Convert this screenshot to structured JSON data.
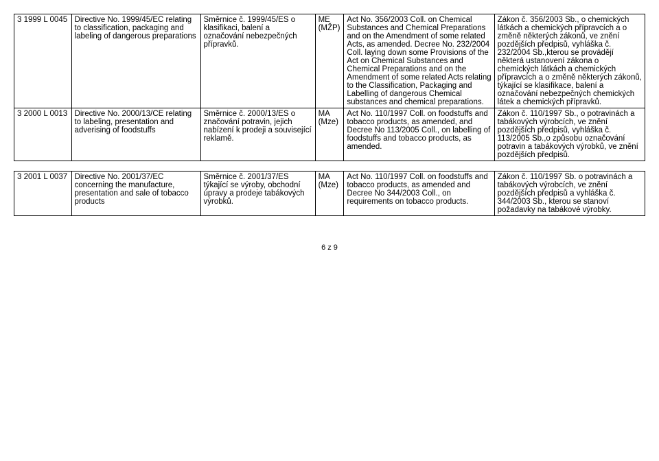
{
  "rows": [
    {
      "id": "3 1999 L 0045",
      "dir_en": "Directive No. 1999/45/EC relating to classification, packaging and labeling of dangerous preparations",
      "dir_cz": "Směrnice č. 1999/45/ES o klasifikaci, balení a označování nebezpečných přípravků.",
      "min": "ME (MŽP)",
      "act_en": "Act No. 356/2003 Coll. on Chemical Substances and Chemical Preparations and on the Amendment of some related Acts, as amended. Decree No. 232/2004 Coll. laying down some Provisions of the Act on Chemical Substances and Chemical Preparations and on the Amendment of some related Acts relating to the Classification, Packaging and Labelling of dangerous Chemical substances and chemical preparations.",
      "act_cz": "Zákon č. 356/2003 Sb., o chemických látkách a chemických přípravcích a o změně některých zákonů, ve znění pozdějších předpisů, vyhláška č. 232/2004 Sb.,kterou se provádějí některá ustanovení zákona o chemických látkách a chemických přípravcích a o změně některých zákonů, týkající se klasifikace, balení a označování nebezpečných chemických látek a chemických přípravků."
    },
    {
      "id": "3 2000 L 0013",
      "dir_en": "Directive No. 2000/13/CE relating to labeling, presentation and adverising of foodstuffs",
      "dir_cz": "Směrnice č. 2000/13/ES o značování potravin, jejich nabízení k prodeji a související reklamě.",
      "min": "MA (Mze)",
      "act_en": "Act No. 110/1997 Coll. on foodstuffs and tobacco products, as amended, and Decree No 113/2005 Coll., on labelling of foodstuffs and tobacco products, as amended.",
      "act_cz": "Zákon č. 110/1997 Sb., o potravinách a tabákových výrobcích, ve znění pozdějších předpisů, vyhláška č. 113/2005 Sb.,o způsobu označování potravin a tabákových výrobků, ve znění pozdějších předpisů."
    },
    {
      "id": "3 2001 L 0037",
      "dir_en": "Directive No. 2001/37/EC concerning the manufacture, presentation and sale of tobacco products",
      "dir_cz": "Směrnice č. 2001/37/ES týkající se výroby, obchodní úpravy a prodeje tabákových výrobků.",
      "min": "MA (Mze)",
      "act_en": "Act No. 110/1997 Coll. on foodstuffs and tobacco products, as amended and Decree No 344/2003 Coll., on requirements on tobacco products.",
      "act_cz": "Zákon č. 110/1997 Sb. o potravinách a tabákových výrobcích, ve znění pozdějších předpisů a vyhláška č. 344/2003 Sb., kterou se stanoví požadavky na tabákové výrobky."
    }
  ],
  "page_number": "6 z 9"
}
